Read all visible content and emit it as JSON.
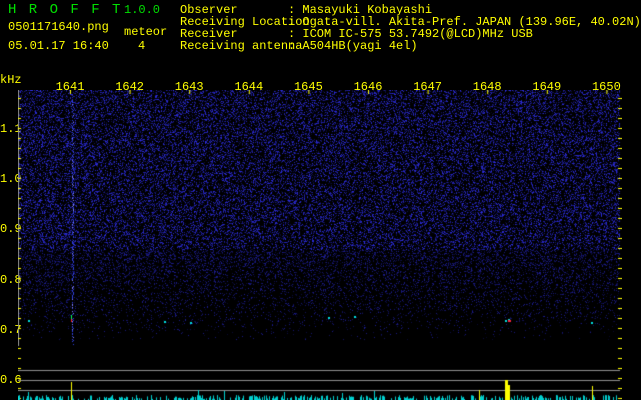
{
  "app": {
    "name": "H R O F F T",
    "version": "1.0.0"
  },
  "file": {
    "name": "0501171640.png",
    "datetime": "05.01.17 16:40"
  },
  "meteor": {
    "label": "meteor",
    "count": "4"
  },
  "info": [
    {
      "label": "Observer",
      "value": ": Masayuki Kobayashi"
    },
    {
      "label": "Receiving Location",
      "value": ": Ogata-vill. Akita-Pref. JAPAN (139.96E, 40.02N)"
    },
    {
      "label": "Receiver",
      "value": ": ICOM IC-575 53.7492(@LCD)MHz USB"
    },
    {
      "label": "Receiving antenna",
      "value": ": A504HB(yagi 4el)"
    }
  ],
  "axis": {
    "y_unit": "kHz",
    "x_ticks": [
      "1641",
      "1642",
      "1643",
      "1644",
      "1645",
      "1646",
      "1647",
      "1648",
      "1649",
      "1650"
    ],
    "y_ticks": [
      "1.1",
      "1.0",
      "0.9",
      "0.8",
      "0.7",
      "0.6"
    ]
  },
  "colors": {
    "text": "#ffff00",
    "title": "#00e000",
    "noise": "#2020c0",
    "peak": "#00e0e0",
    "grid": "#909090"
  }
}
